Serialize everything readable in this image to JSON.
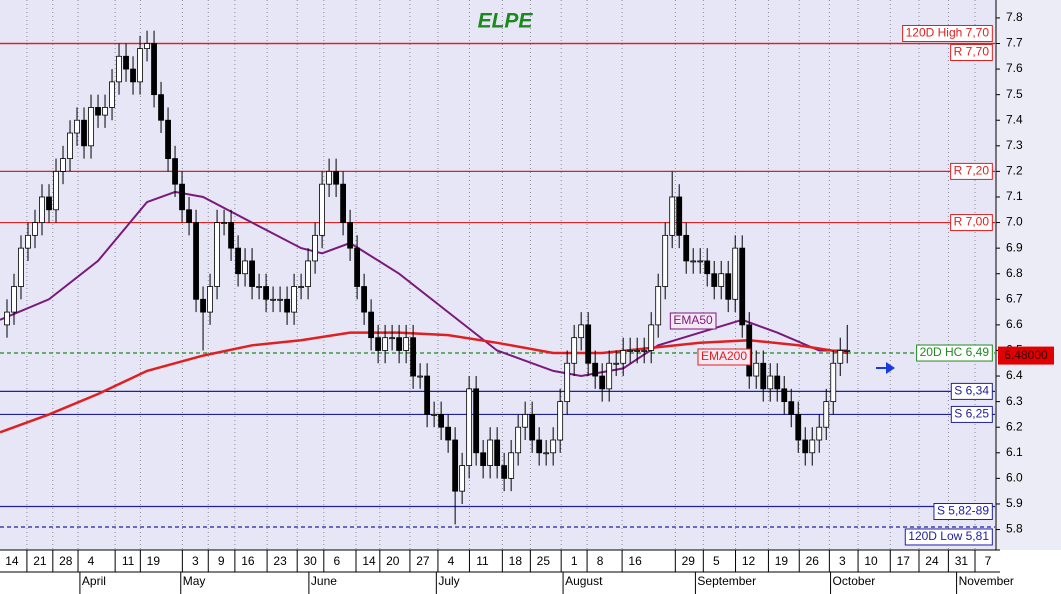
{
  "chart_data": {
    "type": "candlestick",
    "title": "ELPE",
    "xlim": [
      0,
      142.1
    ],
    "ylim": [
      5.72,
      7.87
    ],
    "yticks": [
      5.8,
      5.9,
      {
        "value": 6,
        "label": "6.0"
      },
      6.1,
      6.2,
      6.3,
      6.4,
      6.5,
      6.6,
      6.7,
      6.8,
      6.9,
      {
        "value": 7,
        "label": "7.0"
      },
      7.1,
      7.2,
      7.3,
      7.4,
      7.5,
      7.6,
      7.7,
      7.8
    ],
    "xticks": [
      {
        "value": 1.7,
        "label": "14"
      },
      {
        "value": 5.7,
        "label": "21"
      },
      {
        "value": 9.4,
        "label": "28"
      },
      {
        "value": 13,
        "label": "4"
      },
      {
        "value": 18.3,
        "label": "11"
      },
      {
        "value": 21.9,
        "label": "19"
      },
      {
        "value": 27.9,
        "label": "3"
      },
      {
        "value": 31.6,
        "label": "9"
      },
      {
        "value": 35.4,
        "label": "16"
      },
      {
        "value": 40,
        "label": "23"
      },
      {
        "value": 44.3,
        "label": "30"
      },
      {
        "value": 48.1,
        "label": "6"
      },
      {
        "value": 52.7,
        "label": "14"
      },
      {
        "value": 56.1,
        "label": "20"
      },
      {
        "value": 60.4,
        "label": "27"
      },
      {
        "value": 64.4,
        "label": "4"
      },
      {
        "value": 68.9,
        "label": "11"
      },
      {
        "value": 73.6,
        "label": "18"
      },
      {
        "value": 77.6,
        "label": "25"
      },
      {
        "value": 82,
        "label": "1"
      },
      {
        "value": 85.7,
        "label": "8"
      },
      {
        "value": 90.7,
        "label": "16"
      },
      {
        "value": 98.3,
        "label": "29"
      },
      {
        "value": 102.3,
        "label": "5"
      },
      {
        "value": 106.9,
        "label": "12"
      },
      {
        "value": 111.6,
        "label": "19"
      },
      {
        "value": 116,
        "label": "26"
      },
      {
        "value": 120.3,
        "label": "3"
      },
      {
        "value": 124.4,
        "label": "10"
      },
      {
        "value": 129,
        "label": "17"
      },
      {
        "value": 133.1,
        "label": "24"
      },
      {
        "value": 137.3,
        "label": "31"
      },
      {
        "value": 141.1,
        "label": "7"
      }
    ],
    "months": [
      {
        "value": 11.7,
        "label": "April"
      },
      {
        "value": 26.1,
        "label": "May"
      },
      {
        "value": 44.4,
        "label": "June"
      },
      {
        "value": 62.6,
        "label": "July"
      },
      {
        "value": 80.7,
        "label": "August"
      },
      {
        "value": 99.6,
        "label": "September"
      },
      {
        "value": 118.9,
        "label": "October"
      },
      {
        "value": 136.9,
        "label": "November"
      }
    ],
    "open": [
      6.6,
      6.65,
      6.75,
      6.9,
      6.95,
      7.0,
      7.1,
      7.05,
      7.2,
      7.25,
      7.35,
      7.4,
      7.3,
      7.45,
      7.42,
      7.45,
      7.55,
      7.65,
      7.6,
      7.55,
      7.68,
      7.7,
      7.5,
      7.4,
      7.25,
      7.15,
      7.05,
      7.0,
      6.7,
      6.65,
      6.75,
      7.0,
      7.0,
      6.9,
      6.8,
      6.85,
      6.75,
      6.75,
      6.7,
      6.7,
      6.7,
      6.65,
      6.75,
      6.75,
      6.85,
      6.95,
      7.15,
      7.2,
      7.15,
      7.0,
      6.9,
      6.75,
      6.65,
      6.55,
      6.5,
      6.55,
      6.55,
      6.5,
      6.55,
      6.4,
      6.4,
      6.25,
      6.25,
      6.2,
      6.15,
      5.95,
      6.05,
      6.35,
      6.1,
      6.05,
      6.15,
      6.05,
      6.0,
      6.1,
      6.2,
      6.25,
      6.15,
      6.1,
      6.1,
      6.15,
      6.3,
      6.45,
      6.55,
      6.6,
      6.45,
      6.4,
      6.35,
      6.45,
      6.45,
      6.5,
      6.5,
      6.5,
      6.5,
      6.6,
      6.75,
      6.95,
      7.1,
      6.95,
      6.85,
      6.85,
      6.85,
      6.8,
      6.75,
      6.8,
      6.7,
      6.9,
      6.6,
      6.4,
      6.45,
      6.35,
      6.4,
      6.35,
      6.3,
      6.25,
      6.15,
      6.1,
      6.15,
      6.2,
      6.3,
      6.45,
      6.5
    ],
    "high": [
      6.7,
      6.8,
      6.95,
      7.0,
      7.05,
      7.15,
      7.15,
      7.25,
      7.3,
      7.4,
      7.45,
      7.45,
      7.5,
      7.5,
      7.5,
      7.6,
      7.7,
      7.7,
      7.65,
      7.73,
      7.75,
      7.75,
      7.55,
      7.45,
      7.3,
      7.2,
      7.1,
      7.05,
      6.75,
      6.8,
      7.05,
      7.05,
      7.05,
      6.95,
      6.9,
      6.9,
      6.8,
      6.8,
      6.75,
      6.75,
      6.75,
      6.8,
      6.8,
      6.9,
      7.0,
      7.2,
      7.25,
      7.25,
      7.2,
      7.05,
      6.95,
      6.8,
      6.7,
      6.6,
      6.6,
      6.6,
      6.6,
      6.6,
      6.6,
      6.45,
      6.45,
      6.3,
      6.3,
      6.25,
      6.2,
      6.1,
      6.4,
      6.4,
      6.15,
      6.2,
      6.2,
      6.1,
      6.15,
      6.25,
      6.3,
      6.3,
      6.2,
      6.15,
      6.2,
      6.35,
      6.5,
      6.6,
      6.65,
      6.65,
      6.5,
      6.45,
      6.5,
      6.5,
      6.55,
      6.55,
      6.55,
      6.55,
      6.65,
      6.8,
      7.0,
      7.2,
      7.15,
      7.0,
      6.9,
      6.9,
      6.9,
      6.85,
      6.85,
      6.85,
      6.95,
      6.95,
      6.65,
      6.5,
      6.5,
      6.45,
      6.45,
      6.4,
      6.35,
      6.3,
      6.2,
      6.2,
      6.25,
      6.35,
      6.5,
      6.55,
      6.6
    ],
    "low": [
      6.55,
      6.6,
      6.7,
      6.85,
      6.9,
      6.95,
      7.0,
      7.0,
      7.15,
      7.2,
      7.3,
      7.25,
      7.25,
      7.37,
      7.37,
      7.4,
      7.5,
      7.55,
      7.5,
      7.5,
      7.63,
      7.45,
      7.35,
      7.2,
      7.1,
      7.0,
      6.95,
      6.65,
      6.5,
      6.6,
      6.7,
      6.95,
      6.85,
      6.75,
      6.75,
      6.7,
      6.7,
      6.65,
      6.65,
      6.65,
      6.6,
      6.6,
      6.7,
      6.7,
      6.8,
      6.9,
      7.1,
      7.1,
      6.95,
      6.85,
      6.7,
      6.6,
      6.5,
      6.45,
      6.45,
      6.5,
      6.45,
      6.45,
      6.35,
      6.35,
      6.2,
      6.2,
      6.15,
      6.1,
      5.82,
      5.9,
      6.0,
      6.05,
      6.0,
      6.0,
      6.0,
      5.95,
      5.95,
      6.05,
      6.15,
      6.1,
      6.05,
      6.05,
      6.05,
      6.1,
      6.25,
      6.4,
      6.5,
      6.4,
      6.35,
      6.3,
      6.3,
      6.4,
      6.4,
      6.45,
      6.45,
      6.45,
      6.45,
      6.55,
      6.7,
      6.9,
      6.9,
      6.8,
      6.8,
      6.8,
      6.75,
      6.7,
      6.7,
      6.65,
      6.65,
      6.55,
      6.35,
      6.35,
      6.3,
      6.3,
      6.3,
      6.25,
      6.2,
      6.1,
      6.05,
      6.05,
      6.1,
      6.15,
      6.25,
      6.4,
      6.45
    ],
    "close": [
      6.65,
      6.75,
      6.9,
      6.95,
      7.0,
      7.1,
      7.05,
      7.2,
      7.25,
      7.35,
      7.4,
      7.3,
      7.45,
      7.42,
      7.45,
      7.55,
      7.65,
      7.6,
      7.55,
      7.68,
      7.7,
      7.5,
      7.4,
      7.25,
      7.15,
      7.05,
      7.0,
      6.7,
      6.65,
      6.75,
      7.0,
      7.0,
      6.9,
      6.8,
      6.85,
      6.75,
      6.75,
      6.7,
      6.7,
      6.7,
      6.65,
      6.75,
      6.75,
      6.85,
      6.95,
      7.15,
      7.2,
      7.15,
      7.0,
      6.9,
      6.75,
      6.65,
      6.55,
      6.5,
      6.55,
      6.55,
      6.5,
      6.55,
      6.4,
      6.4,
      6.25,
      6.25,
      6.2,
      6.15,
      5.95,
      6.05,
      6.35,
      6.1,
      6.05,
      6.15,
      6.05,
      6.0,
      6.1,
      6.2,
      6.25,
      6.15,
      6.1,
      6.1,
      6.15,
      6.3,
      6.45,
      6.55,
      6.6,
      6.45,
      6.4,
      6.35,
      6.45,
      6.45,
      6.5,
      6.5,
      6.5,
      6.5,
      6.6,
      6.75,
      6.95,
      7.1,
      6.95,
      6.85,
      6.85,
      6.85,
      6.8,
      6.75,
      6.8,
      6.7,
      6.9,
      6.6,
      6.4,
      6.45,
      6.35,
      6.4,
      6.35,
      6.3,
      6.25,
      6.15,
      6.1,
      6.15,
      6.2,
      6.3,
      6.45,
      6.5,
      6.5
    ],
    "series": [
      {
        "name": "EMA50",
        "color": "#7a1a7a",
        "x": [
          0,
          7,
          14,
          21,
          25,
          29,
          36,
          43,
          46,
          50,
          57,
          64,
          71,
          79,
          83,
          89,
          94,
          100,
          106,
          111,
          117,
          121
        ],
        "values": [
          6.62,
          6.7,
          6.85,
          7.08,
          7.12,
          7.1,
          7.0,
          6.9,
          6.88,
          6.92,
          6.8,
          6.65,
          6.5,
          6.42,
          6.4,
          6.43,
          6.52,
          6.57,
          6.62,
          6.57,
          6.5,
          6.5
        ]
      },
      {
        "name": "EMA200",
        "color": "#e02020",
        "x": [
          0,
          7,
          14,
          21,
          29,
          36,
          43,
          50,
          57,
          64,
          71,
          79,
          86,
          93,
          100,
          107,
          114,
          121
        ],
        "values": [
          6.18,
          6.25,
          6.33,
          6.42,
          6.48,
          6.52,
          6.54,
          6.57,
          6.57,
          6.56,
          6.53,
          6.49,
          6.49,
          6.51,
          6.53,
          6.54,
          6.52,
          6.49
        ]
      }
    ],
    "levels": [
      {
        "label": "120D High 7,70",
        "value": 7.7,
        "color": "#e02020",
        "style": "solid"
      },
      {
        "label": "R 7,70",
        "value": 7.7,
        "color": "#e02020",
        "style": "solid"
      },
      {
        "label": "R 7,20",
        "value": 7.2,
        "color": "#e02020",
        "style": "solid"
      },
      {
        "label": "R 7,00",
        "value": 7.0,
        "color": "#e02020",
        "style": "solid"
      },
      {
        "label": "20D HC 6,49",
        "value": 6.49,
        "color": "#208a20",
        "style": "dashed"
      },
      {
        "label": "S 6,34",
        "value": 6.34,
        "color": "#2020a0",
        "style": "solid"
      },
      {
        "label": "S 6,25",
        "value": 6.25,
        "color": "#2020a0",
        "style": "solid"
      },
      {
        "label": "S 5,82-89",
        "value": 5.89,
        "color": "#2020a0",
        "style": "solid"
      },
      {
        "label": "120D Low 5,81",
        "value": 5.81,
        "color": "#2020a0",
        "style": "dashed"
      }
    ],
    "last_price": {
      "value": 6.48,
      "label": "6.48000",
      "color": "#e00000"
    }
  }
}
